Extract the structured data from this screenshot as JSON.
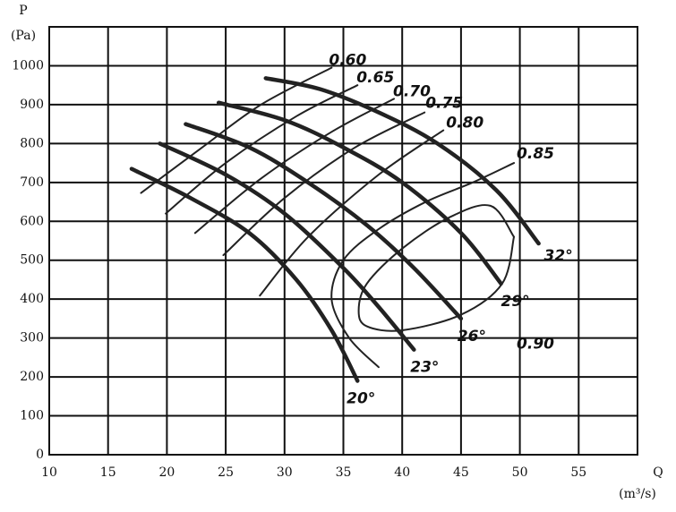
{
  "chart_data": {
    "type": "line",
    "y_label": "P",
    "y_unit": "(Pa)",
    "x_label": "Q",
    "x_unit": "(m³/s)",
    "xlim": [
      10,
      60
    ],
    "ylim": [
      0,
      1100
    ],
    "xticks": [
      10,
      15,
      20,
      25,
      30,
      35,
      40,
      45,
      50,
      55
    ],
    "yticks": [
      0,
      100,
      200,
      300,
      400,
      500,
      600,
      700,
      800,
      900,
      1000
    ],
    "grid": true,
    "series": [
      {
        "name": "20°",
        "color": "#222222",
        "x": [
          17,
          22,
          27,
          31,
          34,
          36.2
        ],
        "values": [
          735,
          660,
          570,
          450,
          320,
          190
        ]
      },
      {
        "name": "23°",
        "color": "#222222",
        "x": [
          19.4,
          25,
          30,
          35,
          38,
          41
        ],
        "values": [
          800,
          720,
          620,
          480,
          380,
          270
        ]
      },
      {
        "name": "26°",
        "color": "#222222",
        "x": [
          21.6,
          27,
          32,
          37,
          41,
          45
        ],
        "values": [
          850,
          790,
          700,
          590,
          480,
          350
        ]
      },
      {
        "name": "29°",
        "color": "#222222",
        "x": [
          24.4,
          30,
          35,
          40,
          45,
          48.4
        ],
        "values": [
          905,
          860,
          790,
          700,
          570,
          440
        ]
      },
      {
        "name": "32°",
        "color": "#222222",
        "x": [
          28.4,
          33,
          38,
          43,
          48,
          51.6
        ],
        "values": [
          968,
          940,
          880,
          800,
          680,
          543
        ]
      },
      {
        "name": "0.60",
        "color": "#222222",
        "x": [
          17.8,
          23,
          28,
          34
        ],
        "values": [
          673,
          790,
          900,
          995
        ]
      },
      {
        "name": "0.65",
        "color": "#222222",
        "x": [
          19.9,
          25,
          31,
          36.2
        ],
        "values": [
          620,
          750,
          870,
          950
        ]
      },
      {
        "name": "0.70",
        "color": "#222222",
        "x": [
          22.4,
          28,
          34,
          39.3
        ],
        "values": [
          570,
          710,
          830,
          915
        ]
      },
      {
        "name": "0.75",
        "color": "#222222",
        "x": [
          24.8,
          30,
          36,
          41.9
        ],
        "values": [
          513,
          660,
          790,
          880
        ]
      },
      {
        "name": "0.80",
        "color": "#222222",
        "x": [
          27.9,
          32,
          38,
          43.5
        ],
        "values": [
          409,
          560,
          720,
          834
        ]
      },
      {
        "name": "0.85",
        "color": "#222222",
        "x": [
          38,
          35.5,
          34,
          35,
          38,
          42,
          46,
          49.5
        ],
        "values": [
          225,
          300,
          400,
          500,
          580,
          650,
          700,
          750
        ]
      },
      {
        "name": "0.90",
        "color": "#222222",
        "x": [
          49.5,
          48.5,
          45,
          40,
          37,
          36.3,
          37,
          40,
          44,
          47.5,
          49.5
        ],
        "values": [
          560,
          440,
          360,
          320,
          330,
          370,
          440,
          530,
          610,
          640,
          560
        ]
      }
    ]
  }
}
